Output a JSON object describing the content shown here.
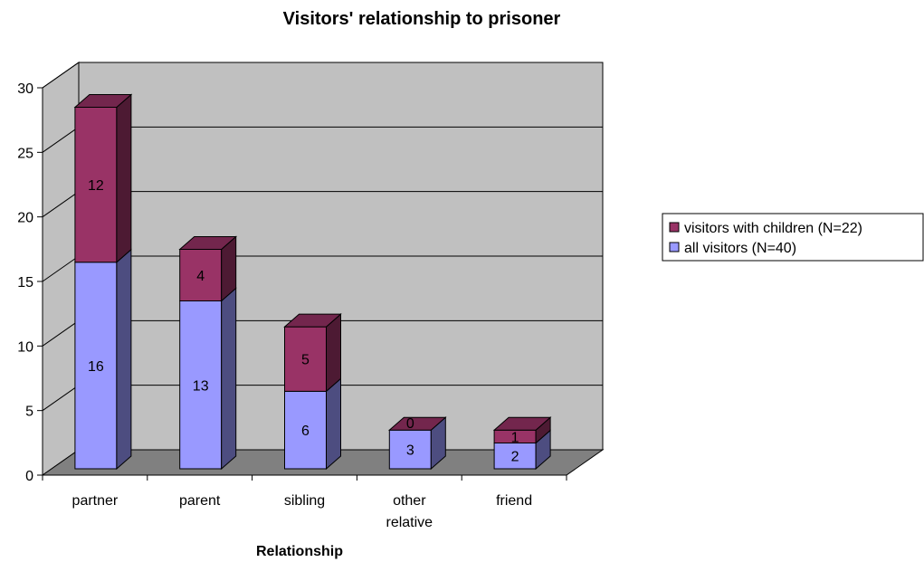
{
  "chart_data": {
    "type": "bar",
    "stacked": true,
    "three_d": true,
    "title": "Visitors' relationship to prisoner",
    "xlabel": "Relationship",
    "ylabel": "",
    "categories": [
      "partner",
      "parent",
      "sibling",
      "other relative",
      "friend"
    ],
    "series": [
      {
        "name": "all visitors (N=40)",
        "values": [
          16,
          13,
          6,
          3,
          2
        ],
        "color": "#9999FF"
      },
      {
        "name": "visitors with children (N=22)",
        "values": [
          12,
          4,
          5,
          0,
          1
        ],
        "color": "#993366"
      }
    ],
    "data_labels": [
      [
        "16",
        "13",
        "6",
        "3",
        "2"
      ],
      [
        "12",
        "4",
        "5",
        "0",
        "1"
      ]
    ],
    "y_ticks": [
      "0",
      "5",
      "10",
      "15",
      "20",
      "25",
      "30"
    ],
    "ylim": [
      0,
      30
    ],
    "grid": true,
    "wall_color": "#C0C0C0",
    "floor_color": "#808080",
    "legend_position": "right"
  }
}
